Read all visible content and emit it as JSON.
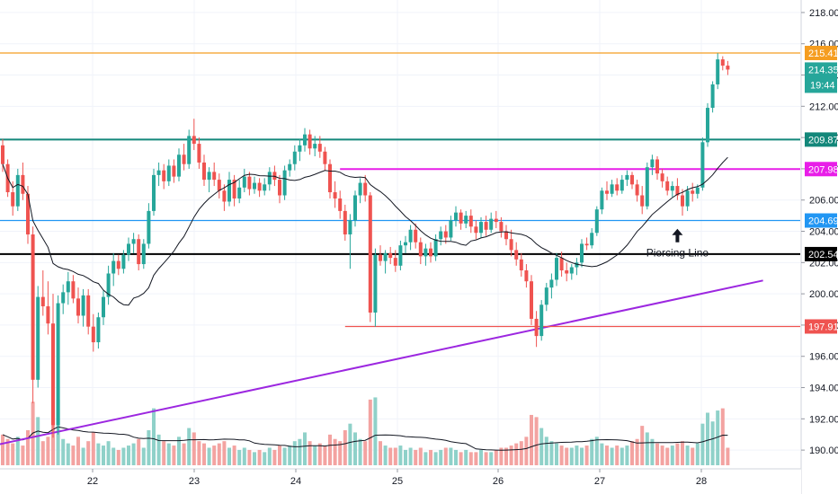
{
  "chart_data": {
    "type": "candlestick",
    "x_ticks": [
      "22",
      "23",
      "24",
      "25",
      "26",
      "27",
      "28"
    ],
    "y_ticks": [
      "190.00",
      "192.00",
      "194.00",
      "196.00",
      "198.00",
      "200.00",
      "202.00",
      "204.00",
      "206.00",
      "208.00",
      "210.00",
      "212.00",
      "214.00",
      "216.00",
      "218.00"
    ],
    "ylim": [
      188.8,
      218.8
    ],
    "colors": {
      "up": "#26a69a",
      "down": "#ef5350",
      "vol_up": "#8fd1c9",
      "vol_down": "#f3a3a1",
      "ma": "#131722"
    },
    "ohlc": [
      [
        209.5,
        209.9,
        207.8,
        208.3
      ],
      [
        208.3,
        208.6,
        206.2,
        206.5
      ],
      [
        206.5,
        207.2,
        205.0,
        205.6
      ],
      [
        205.6,
        208.0,
        205.3,
        207.6
      ],
      [
        207.6,
        208.4,
        206.0,
        206.4
      ],
      [
        206.4,
        206.9,
        203.2,
        203.8
      ],
      [
        203.8,
        204.3,
        193.0,
        194.5
      ],
      [
        194.5,
        200.5,
        194.0,
        199.8
      ],
      [
        199.8,
        201.5,
        198.6,
        199.2
      ],
      [
        199.2,
        200.8,
        197.4,
        198.1
      ],
      [
        198.1,
        200.0,
        190.8,
        191.6
      ],
      [
        191.6,
        199.9,
        191.0,
        199.4
      ],
      [
        199.4,
        200.6,
        198.7,
        200.1
      ],
      [
        200.1,
        201.4,
        199.3,
        200.8
      ],
      [
        200.8,
        201.2,
        199.4,
        199.7
      ],
      [
        199.7,
        200.4,
        198.1,
        198.6
      ],
      [
        198.6,
        200.3,
        197.9,
        199.9
      ],
      [
        199.9,
        200.3,
        197.4,
        197.9
      ],
      [
        197.9,
        198.7,
        196.3,
        196.9
      ],
      [
        196.9,
        198.8,
        196.5,
        198.5
      ],
      [
        198.5,
        200.2,
        198.0,
        199.8
      ],
      [
        199.8,
        201.8,
        199.3,
        201.3
      ],
      [
        201.3,
        202.6,
        200.5,
        202.1
      ],
      [
        202.1,
        202.5,
        201.2,
        201.6
      ],
      [
        201.6,
        202.8,
        201.3,
        202.5
      ],
      [
        202.5,
        203.6,
        202.1,
        203.2
      ],
      [
        203.2,
        203.9,
        202.6,
        203.5
      ],
      [
        203.5,
        203.8,
        201.5,
        201.9
      ],
      [
        201.9,
        203.5,
        201.6,
        203.2
      ],
      [
        203.2,
        205.8,
        202.9,
        205.3
      ],
      [
        205.3,
        208.0,
        205.0,
        207.6
      ],
      [
        207.6,
        208.4,
        206.9,
        207.9
      ],
      [
        207.9,
        208.3,
        206.7,
        207.2
      ],
      [
        207.2,
        208.6,
        206.9,
        208.2
      ],
      [
        208.2,
        208.6,
        207.1,
        207.5
      ],
      [
        207.5,
        209.3,
        207.2,
        208.9
      ],
      [
        208.9,
        209.6,
        207.9,
        208.3
      ],
      [
        208.3,
        210.5,
        208.0,
        210.1
      ],
      [
        210.1,
        211.2,
        209.2,
        209.6
      ],
      [
        209.6,
        210.0,
        208.0,
        208.4
      ],
      [
        208.4,
        208.9,
        206.9,
        207.3
      ],
      [
        207.3,
        208.1,
        206.5,
        207.8
      ],
      [
        207.8,
        208.4,
        206.9,
        207.3
      ],
      [
        207.3,
        207.7,
        206.1,
        206.6
      ],
      [
        206.6,
        207.0,
        205.3,
        205.9
      ],
      [
        205.9,
        207.8,
        205.6,
        207.3
      ],
      [
        207.3,
        207.6,
        205.6,
        206.1
      ],
      [
        206.1,
        207.3,
        205.8,
        206.8
      ],
      [
        206.8,
        208.0,
        206.5,
        207.5
      ],
      [
        207.5,
        207.8,
        206.3,
        206.7
      ],
      [
        206.7,
        207.5,
        206.4,
        207.1
      ],
      [
        207.1,
        207.4,
        206.2,
        206.6
      ],
      [
        206.6,
        207.4,
        206.3,
        207.0
      ],
      [
        207.0,
        208.1,
        206.6,
        207.8
      ],
      [
        207.8,
        208.2,
        206.9,
        207.3
      ],
      [
        207.3,
        207.6,
        205.8,
        206.3
      ],
      [
        206.3,
        208.2,
        206.0,
        207.9
      ],
      [
        207.9,
        208.6,
        207.5,
        208.3
      ],
      [
        208.3,
        209.5,
        207.9,
        209.1
      ],
      [
        209.1,
        209.9,
        208.5,
        209.5
      ],
      [
        209.5,
        210.6,
        209.1,
        210.2
      ],
      [
        210.2,
        210.5,
        208.9,
        209.3
      ],
      [
        209.3,
        210.1,
        208.8,
        209.6
      ],
      [
        209.6,
        210.1,
        208.7,
        209.1
      ],
      [
        209.1,
        209.4,
        207.9,
        208.3
      ],
      [
        208.3,
        208.6,
        206.1,
        206.5
      ],
      [
        206.5,
        207.2,
        205.5,
        206.1
      ],
      [
        206.1,
        206.6,
        204.8,
        205.3
      ],
      [
        205.3,
        205.7,
        203.4,
        203.8
      ],
      [
        203.8,
        205.1,
        201.6,
        204.7
      ],
      [
        204.7,
        206.6,
        204.3,
        206.3
      ],
      [
        206.3,
        207.4,
        205.8,
        207.1
      ],
      [
        207.1,
        207.6,
        205.9,
        206.3
      ],
      [
        206.3,
        206.5,
        198.2,
        198.8
      ],
      [
        198.8,
        202.9,
        197.9,
        202.5
      ],
      [
        202.5,
        203.1,
        201.8,
        202.1
      ],
      [
        202.1,
        202.8,
        201.3,
        202.6
      ],
      [
        202.6,
        203.0,
        201.9,
        202.3
      ],
      [
        202.3,
        202.8,
        201.4,
        201.8
      ],
      [
        201.8,
        203.4,
        201.5,
        203.1
      ],
      [
        203.1,
        203.7,
        202.6,
        203.3
      ],
      [
        203.3,
        204.4,
        202.8,
        204.1
      ],
      [
        204.1,
        204.5,
        202.9,
        203.3
      ],
      [
        203.3,
        203.6,
        201.9,
        202.4
      ],
      [
        202.4,
        203.2,
        201.8,
        202.9
      ],
      [
        202.9,
        203.3,
        202.0,
        202.4
      ],
      [
        202.4,
        203.8,
        202.1,
        203.5
      ],
      [
        203.5,
        204.3,
        203.1,
        204.0
      ],
      [
        204.0,
        204.4,
        203.2,
        203.6
      ],
      [
        203.6,
        205.0,
        203.4,
        204.7
      ],
      [
        204.7,
        205.6,
        204.3,
        205.2
      ],
      [
        205.2,
        205.4,
        204.1,
        204.5
      ],
      [
        204.5,
        205.3,
        204.2,
        205.0
      ],
      [
        205.0,
        205.4,
        203.9,
        204.3
      ],
      [
        204.3,
        204.7,
        203.5,
        203.9
      ],
      [
        203.9,
        204.9,
        203.6,
        204.6
      ],
      [
        204.6,
        205.0,
        203.7,
        204.1
      ],
      [
        204.1,
        205.2,
        203.9,
        204.8
      ],
      [
        204.8,
        205.3,
        204.2,
        204.6
      ],
      [
        204.6,
        204.9,
        203.6,
        204.0
      ],
      [
        204.0,
        204.4,
        203.1,
        203.5
      ],
      [
        203.5,
        204.1,
        202.4,
        202.8
      ],
      [
        202.8,
        203.3,
        201.8,
        202.2
      ],
      [
        202.2,
        202.6,
        201.1,
        201.5
      ],
      [
        201.5,
        201.9,
        200.4,
        200.8
      ],
      [
        200.8,
        201.2,
        198.0,
        198.4
      ],
      [
        198.4,
        198.9,
        196.6,
        197.3
      ],
      [
        197.3,
        199.6,
        197.0,
        199.3
      ],
      [
        199.3,
        200.7,
        198.9,
        200.4
      ],
      [
        200.4,
        201.3,
        199.7,
        200.9
      ],
      [
        200.9,
        202.6,
        200.5,
        202.3
      ],
      [
        202.3,
        202.7,
        201.1,
        201.5
      ],
      [
        201.5,
        202.0,
        200.8,
        201.3
      ],
      [
        201.3,
        201.9,
        200.9,
        201.7
      ],
      [
        201.7,
        202.3,
        201.2,
        202.0
      ],
      [
        202.0,
        203.5,
        201.7,
        203.2
      ],
      [
        203.2,
        203.6,
        202.8,
        203.1
      ],
      [
        203.1,
        204.2,
        202.9,
        203.9
      ],
      [
        203.9,
        205.6,
        203.7,
        205.4
      ],
      [
        205.4,
        206.8,
        205.1,
        206.6
      ],
      [
        206.6,
        207.2,
        206.0,
        206.4
      ],
      [
        206.4,
        207.3,
        206.2,
        207.0
      ],
      [
        207.0,
        207.4,
        206.3,
        206.6
      ],
      [
        206.6,
        207.6,
        206.4,
        207.3
      ],
      [
        207.3,
        207.9,
        206.9,
        207.6
      ],
      [
        207.6,
        207.8,
        206.7,
        207.0
      ],
      [
        207.0,
        207.3,
        205.9,
        206.3
      ],
      [
        206.3,
        206.9,
        205.1,
        205.6
      ],
      [
        205.6,
        208.4,
        205.4,
        208.1
      ],
      [
        208.1,
        208.9,
        207.6,
        208.6
      ],
      [
        208.6,
        208.8,
        207.3,
        207.7
      ],
      [
        207.7,
        208.0,
        206.8,
        207.2
      ],
      [
        207.2,
        207.5,
        206.3,
        206.6
      ],
      [
        206.6,
        207.2,
        206.2,
        206.9
      ],
      [
        206.9,
        207.4,
        206.0,
        206.3
      ],
      [
        206.3,
        206.7,
        205.0,
        205.6
      ],
      [
        205.6,
        206.9,
        205.3,
        206.6
      ],
      [
        206.6,
        207.1,
        205.9,
        206.4
      ],
      [
        206.4,
        207.0,
        206.1,
        206.8
      ],
      [
        206.8,
        210.0,
        206.6,
        209.7
      ],
      [
        209.7,
        212.2,
        209.4,
        211.9
      ],
      [
        211.9,
        213.6,
        211.6,
        213.4
      ],
      [
        213.4,
        215.4,
        213.1,
        215.0
      ],
      [
        215.0,
        215.2,
        214.3,
        214.6
      ],
      [
        214.6,
        214.9,
        214.0,
        214.35
      ]
    ],
    "volume": [
      1.4,
      1.2,
      1.0,
      1.3,
      0.9,
      1.6,
      2.9,
      2.2,
      1.1,
      1.3,
      3.1,
      3.0,
      1.2,
      1.0,
      0.9,
      1.3,
      0.8,
      1.1,
      1.5,
      1.0,
      0.9,
      1.1,
      0.8,
      0.7,
      0.8,
      0.9,
      1.0,
      1.2,
      0.8,
      1.6,
      2.6,
      1.4,
      1.1,
      1.0,
      0.9,
      1.3,
      1.0,
      1.7,
      1.5,
      1.1,
      1.0,
      0.8,
      0.9,
      1.0,
      1.1,
      0.8,
      0.9,
      0.7,
      0.8,
      0.7,
      0.6,
      0.7,
      0.6,
      0.8,
      0.7,
      0.9,
      0.8,
      0.9,
      1.1,
      1.2,
      1.5,
      1.1,
      0.9,
      1.0,
      0.9,
      1.4,
      1.2,
      1.1,
      1.6,
      1.9,
      1.5,
      1.2,
      1.1,
      3.0,
      3.1,
      1.1,
      0.9,
      0.8,
      0.8,
      0.9,
      0.7,
      0.8,
      0.7,
      0.8,
      0.6,
      0.7,
      0.6,
      0.7,
      0.8,
      0.8,
      0.7,
      0.6,
      0.7,
      0.6,
      0.6,
      0.7,
      0.6,
      0.6,
      0.7,
      0.8,
      0.8,
      0.9,
      1.0,
      1.1,
      1.3,
      2.3,
      2.2,
      1.7,
      1.3,
      1.1,
      1.0,
      0.9,
      0.8,
      0.8,
      0.9,
      0.8,
      0.9,
      1.2,
      1.3,
      1.0,
      0.9,
      0.8,
      0.9,
      0.8,
      0.9,
      1.1,
      1.2,
      1.8,
      1.5,
      1.2,
      1.0,
      0.9,
      0.8,
      0.9,
      1.0,
      1.1,
      0.9,
      0.8,
      1.0,
      1.9,
      2.4,
      2.0,
      2.5,
      2.6,
      0.8
    ],
    "horizontal_lines": [
      {
        "name": "orange-resistance",
        "value": 215.41,
        "color": "#f59d20",
        "label": "215.41",
        "x_start": 0
      },
      {
        "name": "teal-level",
        "value": 209.87,
        "color": "#13877a",
        "label": "209.87",
        "x_start": 0
      },
      {
        "name": "magenta-level",
        "value": 207.98,
        "color": "#e81ee8",
        "label": "207.98",
        "x_start": 67
      },
      {
        "name": "blue-support",
        "value": 204.69,
        "color": "#2196f3",
        "label": "204.69",
        "x_start": 0
      },
      {
        "name": "black-pivot",
        "value": 202.54,
        "color": "#000000",
        "label": "202.54",
        "x_start": 0
      },
      {
        "name": "red-support",
        "value": 197.91,
        "color": "#ef5350",
        "label": "197.91",
        "x_start": 68
      }
    ],
    "price_tag": {
      "value": 214.35,
      "label": "214.35",
      "sub_label": "19:44",
      "color": "#26a69a"
    },
    "trendline": {
      "name": "purple-uptrend",
      "color": "#9c27e0",
      "start": [
        -1,
        190.35
      ],
      "end": [
        151,
        200.85
      ]
    },
    "annotation": {
      "text": "Piercing Line",
      "bar": 134,
      "value": 203.3
    }
  }
}
